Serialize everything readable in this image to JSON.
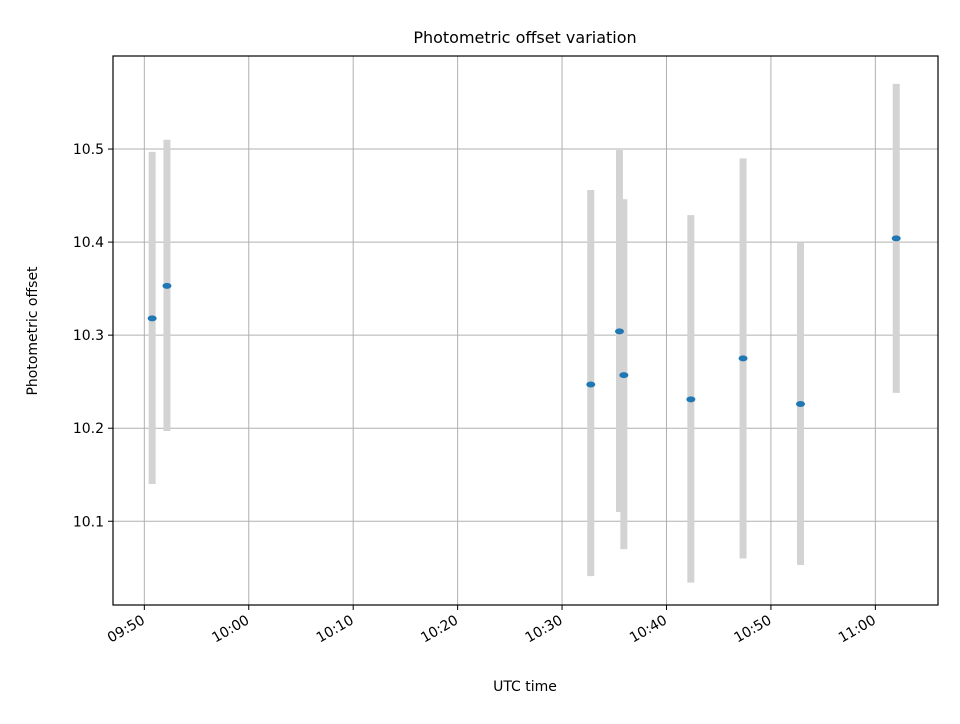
{
  "chart_data": {
    "type": "scatter",
    "title": "Photometric offset variation",
    "xlabel": "UTC time",
    "ylabel": "Photometric offset",
    "x_ticks": [
      "09:50",
      "10:00",
      "10:10",
      "10:20",
      "10:30",
      "10:40",
      "10:50",
      "11:00"
    ],
    "y_ticks": [
      "10.1",
      "10.2",
      "10.3",
      "10.4",
      "10.5"
    ],
    "xlim": [
      "09:47",
      "11:06"
    ],
    "ylim": [
      10.01,
      10.6
    ],
    "grid": true,
    "legend": "none",
    "point_color": "#1f77b4",
    "errorbar_color": "#d3d3d3",
    "points": [
      {
        "t": "09:50:45",
        "y": 10.318,
        "err_low": 10.14,
        "err_high": 10.497
      },
      {
        "t": "09:52:10",
        "y": 10.353,
        "err_low": 10.197,
        "err_high": 10.51
      },
      {
        "t": "10:32:45",
        "y": 10.247,
        "err_low": 10.041,
        "err_high": 10.456
      },
      {
        "t": "10:35:30",
        "y": 10.304,
        "err_low": 10.11,
        "err_high": 10.499
      },
      {
        "t": "10:35:55",
        "y": 10.257,
        "err_low": 10.07,
        "err_high": 10.446
      },
      {
        "t": "10:42:20",
        "y": 10.231,
        "err_low": 10.034,
        "err_high": 10.429
      },
      {
        "t": "10:47:20",
        "y": 10.275,
        "err_low": 10.06,
        "err_high": 10.49
      },
      {
        "t": "10:52:50",
        "y": 10.226,
        "err_low": 10.053,
        "err_high": 10.4
      },
      {
        "t": "11:02:00",
        "y": 10.404,
        "err_low": 10.238,
        "err_high": 10.57
      }
    ]
  }
}
